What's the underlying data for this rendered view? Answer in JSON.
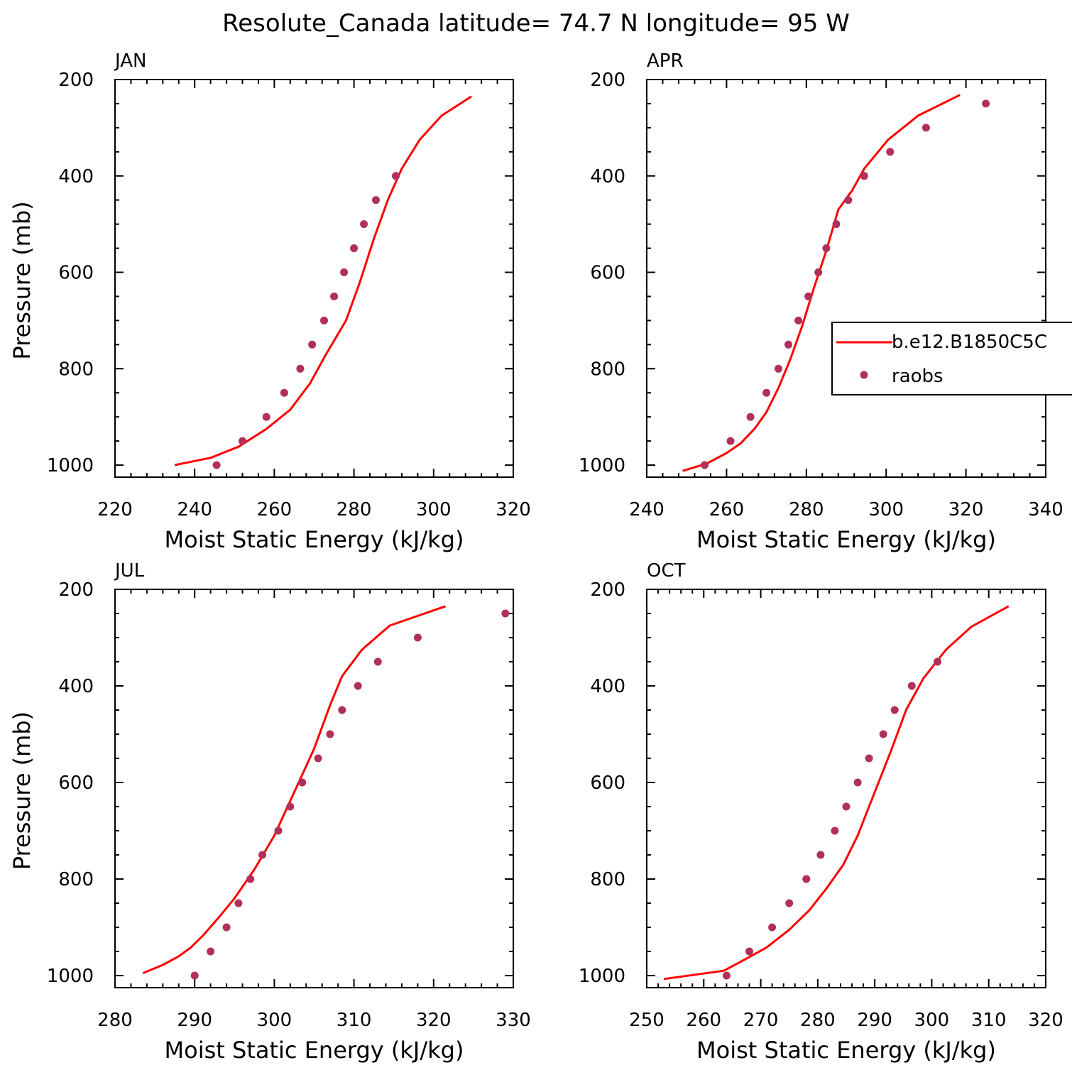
{
  "figure_title": "Resolute_Canada  latitude= 74.7 N longitude= 95 W",
  "colors": {
    "model_line": "#ff0000",
    "obs_marker": "#b0305a",
    "axes": "#000000"
  },
  "legend": {
    "entries": [
      {
        "label": "b.e12.B1850C5C",
        "kind": "line"
      },
      {
        "label": "raobs",
        "kind": "marker"
      }
    ],
    "panel": "APR",
    "placement": "right"
  },
  "chart_data": [
    {
      "type": "line",
      "title": "JAN",
      "xlabel": "Moist Static Energy (kJ/kg)",
      "ylabel": "Pressure (mb)",
      "xlim": [
        220,
        320
      ],
      "xticks": [
        220,
        240,
        260,
        280,
        300,
        320
      ],
      "ylim": [
        200,
        1025
      ],
      "yticks": [
        200,
        400,
        600,
        800,
        1000
      ],
      "y_inverted": true,
      "series": [
        {
          "name": "b.e12.B1850C5C",
          "kind": "line",
          "points": [
            [
              235.0,
              1000
            ],
            [
              244.0,
              985
            ],
            [
              251.0,
              962
            ],
            [
              258.0,
              925
            ],
            [
              264.0,
              885
            ],
            [
              269.0,
              830
            ],
            [
              273.0,
              770
            ],
            [
              278.0,
              700
            ],
            [
              281.5,
              620
            ],
            [
              285.0,
              530
            ],
            [
              288.5,
              450
            ],
            [
              292.0,
              385
            ],
            [
              296.5,
              325
            ],
            [
              302.0,
              275
            ],
            [
              309.5,
              235
            ]
          ]
        },
        {
          "name": "raobs",
          "kind": "scatter",
          "points": [
            [
              245.5,
              1000
            ],
            [
              252.0,
              950
            ],
            [
              258.0,
              900
            ],
            [
              262.5,
              850
            ],
            [
              266.5,
              800
            ],
            [
              269.5,
              750
            ],
            [
              272.5,
              700
            ],
            [
              275.0,
              650
            ],
            [
              277.5,
              600
            ],
            [
              280.0,
              550
            ],
            [
              282.5,
              500
            ],
            [
              285.5,
              450
            ],
            [
              290.5,
              400
            ]
          ]
        }
      ]
    },
    {
      "type": "line",
      "title": "APR",
      "xlabel": "Moist Static Energy (kJ/kg)",
      "ylabel": "",
      "xlim": [
        240,
        340
      ],
      "xticks": [
        240,
        260,
        280,
        300,
        320,
        340
      ],
      "ylim": [
        200,
        1025
      ],
      "yticks": [
        200,
        400,
        600,
        800,
        1000
      ],
      "y_inverted": true,
      "series": [
        {
          "name": "b.e12.B1850C5C",
          "kind": "line",
          "points": [
            [
              249.0,
              1012
            ],
            [
              255.0,
              997
            ],
            [
              260.0,
              975
            ],
            [
              263.5,
              955
            ],
            [
              267.0,
              925
            ],
            [
              270.0,
              890
            ],
            [
              273.0,
              840
            ],
            [
              276.0,
              780
            ],
            [
              279.0,
              710
            ],
            [
              282.0,
              630
            ],
            [
              285.0,
              555
            ],
            [
              288.0,
              470
            ],
            [
              291.5,
              430
            ],
            [
              294.5,
              385
            ],
            [
              300.5,
              325
            ],
            [
              308.0,
              275
            ],
            [
              318.5,
              232
            ]
          ]
        },
        {
          "name": "raobs",
          "kind": "scatter",
          "points": [
            [
              254.5,
              1000
            ],
            [
              261.0,
              950
            ],
            [
              266.0,
              900
            ],
            [
              270.0,
              850
            ],
            [
              273.0,
              800
            ],
            [
              275.5,
              750
            ],
            [
              278.0,
              700
            ],
            [
              280.5,
              650
            ],
            [
              283.0,
              600
            ],
            [
              285.0,
              550
            ],
            [
              287.5,
              500
            ],
            [
              290.5,
              450
            ],
            [
              294.5,
              400
            ],
            [
              301.0,
              350
            ],
            [
              310.0,
              300
            ],
            [
              325.0,
              250
            ]
          ]
        }
      ]
    },
    {
      "type": "line",
      "title": "JUL",
      "xlabel": "Moist Static Energy (kJ/kg)",
      "ylabel": "Pressure (mb)",
      "xlim": [
        280,
        330
      ],
      "xticks": [
        280,
        290,
        300,
        310,
        320,
        330
      ],
      "ylim": [
        200,
        1025
      ],
      "yticks": [
        200,
        400,
        600,
        800,
        1000
      ],
      "y_inverted": true,
      "series": [
        {
          "name": "b.e12.B1850C5C",
          "kind": "line",
          "points": [
            [
              283.5,
              995
            ],
            [
              286.0,
              978
            ],
            [
              288.0,
              960
            ],
            [
              289.5,
              942
            ],
            [
              291.0,
              918
            ],
            [
              293.0,
              880
            ],
            [
              295.0,
              840
            ],
            [
              297.5,
              780
            ],
            [
              300.0,
              710
            ],
            [
              302.5,
              620
            ],
            [
              305.0,
              530
            ],
            [
              307.0,
              440
            ],
            [
              308.5,
              380
            ],
            [
              311.0,
              325
            ],
            [
              314.5,
              275
            ],
            [
              321.5,
              235
            ]
          ]
        },
        {
          "name": "raobs",
          "kind": "scatter",
          "points": [
            [
              290.0,
              1000
            ],
            [
              292.0,
              950
            ],
            [
              294.0,
              900
            ],
            [
              295.5,
              850
            ],
            [
              297.0,
              800
            ],
            [
              298.5,
              750
            ],
            [
              300.5,
              700
            ],
            [
              302.0,
              650
            ],
            [
              303.5,
              600
            ],
            [
              305.5,
              550
            ],
            [
              307.0,
              500
            ],
            [
              308.5,
              450
            ],
            [
              310.5,
              400
            ],
            [
              313.0,
              350
            ],
            [
              318.0,
              300
            ],
            [
              329.0,
              250
            ]
          ]
        }
      ]
    },
    {
      "type": "line",
      "title": "OCT",
      "xlabel": "Moist Static Energy (kJ/kg)",
      "ylabel": "",
      "xlim": [
        250,
        320
      ],
      "xticks": [
        250,
        260,
        270,
        280,
        290,
        300,
        310,
        320
      ],
      "ylim": [
        200,
        1025
      ],
      "yticks": [
        200,
        400,
        600,
        800,
        1000
      ],
      "y_inverted": true,
      "series": [
        {
          "name": "b.e12.B1850C5C",
          "kind": "line",
          "points": [
            [
              253.0,
              1007
            ],
            [
              263.5,
              990
            ],
            [
              267.0,
              968
            ],
            [
              271.0,
              942
            ],
            [
              275.0,
              905
            ],
            [
              278.5,
              865
            ],
            [
              281.5,
              820
            ],
            [
              284.5,
              770
            ],
            [
              287.0,
              710
            ],
            [
              289.0,
              650
            ],
            [
              291.0,
              590
            ],
            [
              293.0,
              530
            ],
            [
              295.5,
              450
            ],
            [
              298.5,
              385
            ],
            [
              302.5,
              325
            ],
            [
              307.0,
              277
            ],
            [
              313.5,
              235
            ]
          ]
        },
        {
          "name": "raobs",
          "kind": "scatter",
          "points": [
            [
              264.0,
              1000
            ],
            [
              268.0,
              950
            ],
            [
              272.0,
              900
            ],
            [
              275.0,
              850
            ],
            [
              278.0,
              800
            ],
            [
              280.5,
              750
            ],
            [
              283.0,
              700
            ],
            [
              285.0,
              650
            ],
            [
              287.0,
              600
            ],
            [
              289.0,
              550
            ],
            [
              291.5,
              500
            ],
            [
              293.5,
              450
            ],
            [
              296.5,
              400
            ],
            [
              301.0,
              350
            ]
          ]
        }
      ]
    }
  ]
}
